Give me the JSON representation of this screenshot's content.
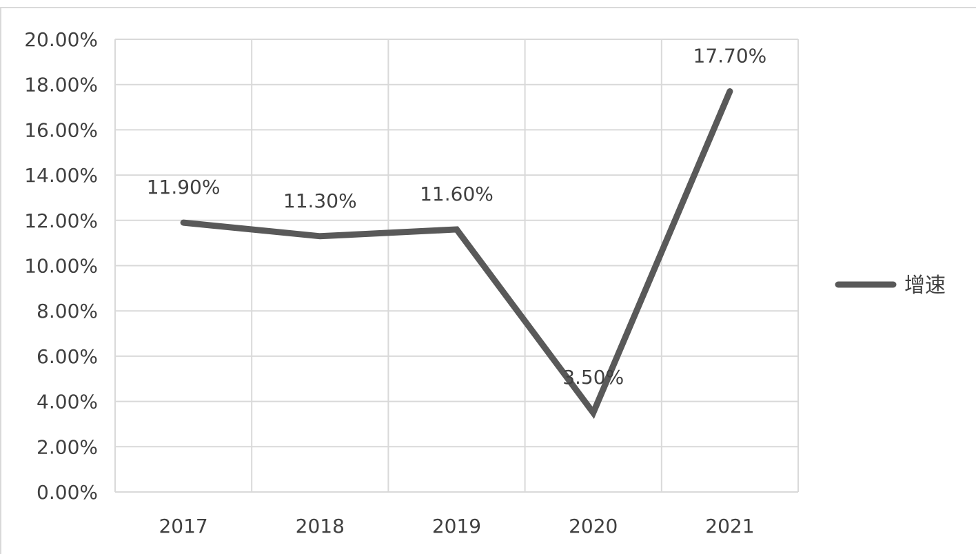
{
  "chart_data": {
    "type": "line",
    "categories": [
      "2017",
      "2018",
      "2019",
      "2020",
      "2021"
    ],
    "series": [
      {
        "name": "增速",
        "values": [
          11.9,
          11.3,
          11.6,
          3.5,
          17.7
        ],
        "data_labels": [
          "11.90%",
          "11.30%",
          "11.60%",
          "3.50%",
          "17.70%"
        ],
        "color": "#595959"
      }
    ],
    "ylim": [
      0,
      20
    ],
    "yticks": [
      "0.00%",
      "2.00%",
      "4.00%",
      "6.00%",
      "8.00%",
      "10.00%",
      "12.00%",
      "14.00%",
      "16.00%",
      "18.00%",
      "20.00%"
    ],
    "ytick_values": [
      0,
      2,
      4,
      6,
      8,
      10,
      12,
      14,
      16,
      18,
      20
    ],
    "grid": true,
    "legend_position": "right",
    "colors": {
      "gridline": "#d9d9d9",
      "text": "#404040",
      "series": "#595959"
    }
  }
}
